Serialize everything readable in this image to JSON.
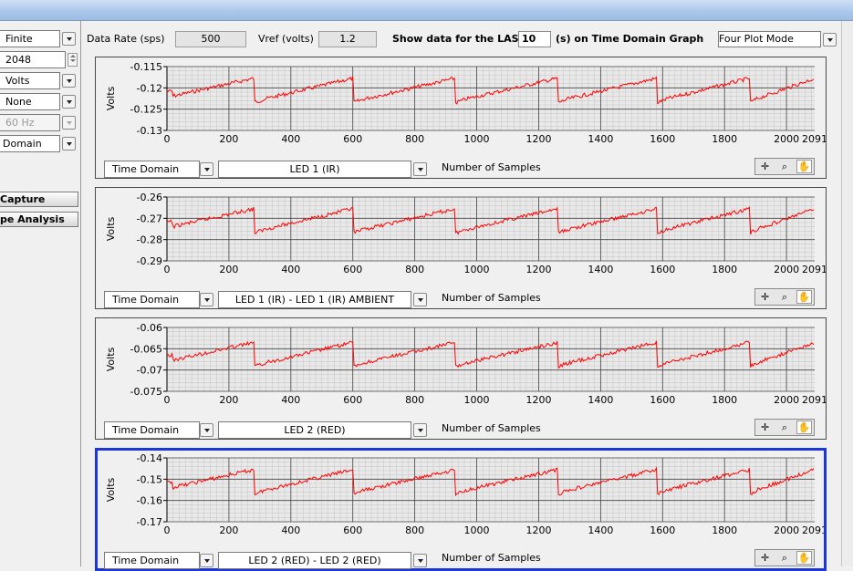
{
  "left_panel": {
    "acq_mode": "Finite",
    "samples": "2048",
    "units": "Volts",
    "filter": "None",
    "notch": "60 Hz",
    "domain": "Domain",
    "capture_button": "Capture",
    "analysis_button": "pe Analysis"
  },
  "top_bar": {
    "data_rate_label": "Data Rate (sps)",
    "data_rate_value": "500",
    "vref_label": "Vref (volts)",
    "vref_value": "1.2",
    "show_last_label": "Show data for the LAST",
    "show_last_value": "10",
    "show_last_suffix": "(s) on Time Domain Graph",
    "plot_mode": "Four Plot Mode"
  },
  "graphs": [
    {
      "domain_select": "Time Domain",
      "signal_select": "LED 1 (IR)",
      "y_label": "Volts",
      "y_ticks": [
        "-0.115",
        "-0.12",
        "-0.125",
        "-0.13"
      ],
      "x_ticks": [
        "0",
        "200",
        "400",
        "600",
        "800",
        "1000",
        "1200",
        "1400",
        "1600",
        "1800",
        "2000",
        "2091"
      ],
      "x_label": "Number of Samples",
      "active": false
    },
    {
      "domain_select": "Time Domain",
      "signal_select": "LED 1 (IR) - LED 1 (IR) AMBIENT",
      "y_label": "Volts",
      "y_ticks": [
        "-0.26",
        "-0.27",
        "-0.28",
        "-0.29"
      ],
      "x_ticks": [
        "0",
        "200",
        "400",
        "600",
        "800",
        "1000",
        "1200",
        "1400",
        "1600",
        "1800",
        "2000",
        "2091"
      ],
      "x_label": "Number of Samples",
      "active": false
    },
    {
      "domain_select": "Time Domain",
      "signal_select": "LED 2 (RED)",
      "y_label": "Volts",
      "y_ticks": [
        "-0.06",
        "-0.065",
        "-0.07",
        "-0.075"
      ],
      "x_ticks": [
        "0",
        "200",
        "400",
        "600",
        "800",
        "1000",
        "1200",
        "1400",
        "1600",
        "1800",
        "2000",
        "2091"
      ],
      "x_label": "Number of Samples",
      "active": false
    },
    {
      "domain_select": "Time Domain",
      "signal_select": "LED 2 (RED) - LED 2 (RED)",
      "y_label": "Volts",
      "y_ticks": [
        "-0.14",
        "-0.15",
        "-0.16",
        "-0.17"
      ],
      "x_ticks": [
        "0",
        "200",
        "400",
        "600",
        "800",
        "1000",
        "1200",
        "1400",
        "1600",
        "1800",
        "2000",
        "2091"
      ],
      "x_label": "Number of Samples",
      "active": true
    }
  ],
  "colors": {
    "trace": "#ff0000",
    "active_border": "#1d36d6",
    "plot_bg": "#e9e9e9"
  },
  "icons": [
    "cursor-move-icon",
    "zoom-icon",
    "pan-hand-icon"
  ]
}
